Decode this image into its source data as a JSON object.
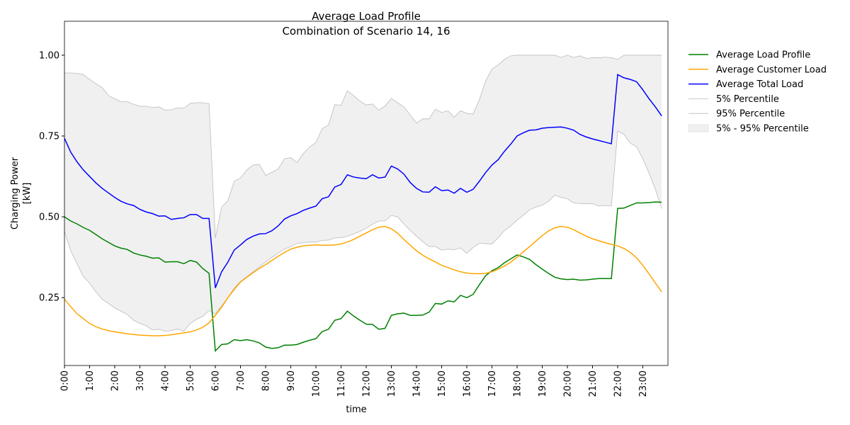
{
  "chart_data": {
    "type": "line",
    "title": "Average Load Profile",
    "subtitle": "Combination of Scenario 14, 16",
    "xlabel": "time",
    "ylabel": [
      "Charging Power",
      "[kW]"
    ],
    "xlim": [
      0,
      24
    ],
    "ylim": [
      0.04,
      1.105
    ],
    "xticks": [
      {
        "value": 0,
        "label": "0:00"
      },
      {
        "value": 1,
        "label": "1:00"
      },
      {
        "value": 2,
        "label": "2:00"
      },
      {
        "value": 3,
        "label": "3:00"
      },
      {
        "value": 4,
        "label": "4:00"
      },
      {
        "value": 5,
        "label": "5:00"
      },
      {
        "value": 6,
        "label": "6:00"
      },
      {
        "value": 7,
        "label": "7:00"
      },
      {
        "value": 8,
        "label": "8:00"
      },
      {
        "value": 9,
        "label": "9:00"
      },
      {
        "value": 10,
        "label": "10:00"
      },
      {
        "value": 11,
        "label": "11:00"
      },
      {
        "value": 12,
        "label": "12:00"
      },
      {
        "value": 13,
        "label": "13:00"
      },
      {
        "value": 14,
        "label": "14:00"
      },
      {
        "value": 15,
        "label": "15:00"
      },
      {
        "value": 16,
        "label": "16:00"
      },
      {
        "value": 17,
        "label": "17:00"
      },
      {
        "value": 18,
        "label": "18:00"
      },
      {
        "value": 19,
        "label": "19:00"
      },
      {
        "value": 20,
        "label": "20:00"
      },
      {
        "value": 21,
        "label": "21:00"
      },
      {
        "value": 22,
        "label": "22:00"
      },
      {
        "value": 23,
        "label": "23:00"
      }
    ],
    "yticks": [
      0.25,
      {
        "value": 0.5,
        "label": "0.50"
      },
      {
        "value": 0.75,
        "label": "0.75"
      },
      {
        "value": 1.0,
        "label": "1.00"
      }
    ],
    "legend": "outside-upper-right",
    "x": [
      0,
      0.25,
      0.5,
      0.75,
      1,
      1.25,
      1.5,
      1.75,
      2,
      2.25,
      2.5,
      2.75,
      3,
      3.25,
      3.5,
      3.75,
      4,
      4.25,
      4.5,
      4.75,
      5,
      5.25,
      5.5,
      5.75,
      6,
      6.25,
      6.5,
      6.75,
      7,
      7.25,
      7.5,
      7.75,
      8,
      8.25,
      8.5,
      8.75,
      9,
      9.25,
      9.5,
      9.75,
      10,
      10.25,
      10.5,
      10.75,
      11,
      11.25,
      11.5,
      11.75,
      12,
      12.25,
      12.5,
      12.75,
      13,
      13.25,
      13.5,
      13.75,
      14,
      14.25,
      14.5,
      14.75,
      15,
      15.25,
      15.5,
      15.75,
      16,
      16.25,
      16.5,
      16.75,
      17,
      17.25,
      17.5,
      17.75,
      18,
      18.25,
      18.5,
      18.75,
      19,
      19.25,
      19.5,
      19.75,
      20,
      20.25,
      20.5,
      20.75,
      21,
      21.25,
      21.5,
      21.75,
      22,
      22.25,
      22.5,
      22.75,
      23,
      23.25,
      23.5,
      23.75
    ],
    "series": [
      {
        "name": "Average Load Profile",
        "color": "#008000",
        "width": 1.5,
        "values": [
          0.5,
          0.487,
          0.478,
          0.467,
          0.458,
          0.445,
          0.432,
          0.421,
          0.41,
          0.403,
          0.399,
          0.388,
          0.382,
          0.378,
          0.372,
          0.373,
          0.36,
          0.361,
          0.361,
          0.355,
          0.365,
          0.36,
          0.34,
          0.325,
          0.085,
          0.105,
          0.107,
          0.12,
          0.117,
          0.12,
          0.116,
          0.11,
          0.097,
          0.093,
          0.095,
          0.103,
          0.103,
          0.105,
          0.112,
          0.118,
          0.123,
          0.145,
          0.152,
          0.18,
          0.185,
          0.208,
          0.193,
          0.18,
          0.168,
          0.167,
          0.152,
          0.155,
          0.195,
          0.2,
          0.202,
          0.195,
          0.195,
          0.196,
          0.205,
          0.232,
          0.23,
          0.24,
          0.237,
          0.257,
          0.25,
          0.26,
          0.29,
          0.318,
          0.333,
          0.343,
          0.358,
          0.37,
          0.382,
          0.376,
          0.368,
          0.352,
          0.338,
          0.325,
          0.313,
          0.308,
          0.306,
          0.307,
          0.304,
          0.305,
          0.307,
          0.309,
          0.309,
          0.309,
          0.526,
          0.527,
          0.535,
          0.543,
          0.543,
          0.544,
          0.546,
          0.545
        ]
      },
      {
        "name": "Average Customer Load",
        "color": "#ffa500",
        "width": 1.5,
        "values": [
          0.245,
          0.222,
          0.2,
          0.185,
          0.17,
          0.16,
          0.153,
          0.148,
          0.144,
          0.141,
          0.138,
          0.136,
          0.134,
          0.133,
          0.132,
          0.132,
          0.133,
          0.135,
          0.138,
          0.141,
          0.144,
          0.15,
          0.158,
          0.172,
          0.195,
          0.22,
          0.25,
          0.275,
          0.298,
          0.313,
          0.327,
          0.34,
          0.352,
          0.365,
          0.378,
          0.39,
          0.4,
          0.406,
          0.41,
          0.412,
          0.413,
          0.412,
          0.412,
          0.413,
          0.416,
          0.422,
          0.43,
          0.44,
          0.45,
          0.46,
          0.468,
          0.47,
          0.463,
          0.449,
          0.43,
          0.412,
          0.395,
          0.381,
          0.37,
          0.36,
          0.35,
          0.343,
          0.336,
          0.33,
          0.326,
          0.324,
          0.324,
          0.325,
          0.33,
          0.338,
          0.348,
          0.36,
          0.375,
          0.392,
          0.408,
          0.425,
          0.442,
          0.456,
          0.466,
          0.47,
          0.468,
          0.46,
          0.45,
          0.44,
          0.432,
          0.426,
          0.42,
          0.415,
          0.41,
          0.402,
          0.39,
          0.373,
          0.35,
          0.323,
          0.295,
          0.268
        ]
      },
      {
        "name": "Average Total Load",
        "color": "#0000ff",
        "width": 1.5,
        "values": [
          0.743,
          0.7,
          0.67,
          0.645,
          0.625,
          0.605,
          0.588,
          0.574,
          0.56,
          0.548,
          0.54,
          0.535,
          0.523,
          0.515,
          0.51,
          0.502,
          0.503,
          0.492,
          0.495,
          0.497,
          0.507,
          0.507,
          0.495,
          0.495,
          0.28,
          0.33,
          0.36,
          0.397,
          0.413,
          0.43,
          0.44,
          0.447,
          0.448,
          0.457,
          0.472,
          0.493,
          0.503,
          0.51,
          0.52,
          0.527,
          0.533,
          0.556,
          0.562,
          0.592,
          0.6,
          0.63,
          0.623,
          0.62,
          0.618,
          0.63,
          0.62,
          0.623,
          0.657,
          0.648,
          0.632,
          0.606,
          0.588,
          0.577,
          0.576,
          0.593,
          0.581,
          0.583,
          0.573,
          0.588,
          0.576,
          0.585,
          0.61,
          0.637,
          0.66,
          0.677,
          0.703,
          0.725,
          0.75,
          0.76,
          0.768,
          0.769,
          0.774,
          0.776,
          0.777,
          0.778,
          0.774,
          0.768,
          0.755,
          0.747,
          0.741,
          0.736,
          0.731,
          0.726,
          0.94,
          0.93,
          0.925,
          0.918,
          0.893,
          0.865,
          0.84,
          0.812
        ]
      },
      {
        "name": "5% Percentile",
        "color": "#bbbbbb",
        "width": 0.8,
        "values": [
          0.455,
          0.395,
          0.355,
          0.315,
          0.295,
          0.268,
          0.245,
          0.232,
          0.218,
          0.208,
          0.198,
          0.18,
          0.17,
          0.163,
          0.15,
          0.152,
          0.146,
          0.148,
          0.153,
          0.146,
          0.17,
          0.183,
          0.192,
          0.21,
          0.2,
          0.225,
          0.25,
          0.28,
          0.3,
          0.315,
          0.33,
          0.345,
          0.36,
          0.375,
          0.388,
          0.4,
          0.408,
          0.418,
          0.42,
          0.422,
          0.422,
          0.427,
          0.428,
          0.435,
          0.435,
          0.44,
          0.447,
          0.455,
          0.465,
          0.477,
          0.487,
          0.487,
          0.504,
          0.5,
          0.478,
          0.458,
          0.44,
          0.423,
          0.408,
          0.408,
          0.397,
          0.4,
          0.398,
          0.404,
          0.387,
          0.405,
          0.418,
          0.417,
          0.416,
          0.435,
          0.458,
          0.472,
          0.49,
          0.505,
          0.522,
          0.53,
          0.536,
          0.548,
          0.567,
          0.56,
          0.556,
          0.543,
          0.541,
          0.54,
          0.541,
          0.533,
          0.535,
          0.534,
          0.765,
          0.755,
          0.728,
          0.717,
          0.68,
          0.635,
          0.585,
          0.525
        ]
      },
      {
        "name": "95% Percentile",
        "color": "#bbbbbb",
        "width": 0.8,
        "values": [
          0.945,
          0.945,
          0.944,
          0.94,
          0.925,
          0.912,
          0.9,
          0.875,
          0.865,
          0.856,
          0.856,
          0.848,
          0.842,
          0.842,
          0.838,
          0.84,
          0.83,
          0.831,
          0.837,
          0.836,
          0.851,
          0.853,
          0.853,
          0.85,
          0.435,
          0.53,
          0.55,
          0.61,
          0.62,
          0.645,
          0.66,
          0.662,
          0.628,
          0.638,
          0.648,
          0.68,
          0.683,
          0.668,
          0.696,
          0.716,
          0.73,
          0.773,
          0.784,
          0.847,
          0.845,
          0.89,
          0.875,
          0.858,
          0.846,
          0.849,
          0.83,
          0.843,
          0.866,
          0.853,
          0.84,
          0.815,
          0.79,
          0.803,
          0.803,
          0.833,
          0.823,
          0.828,
          0.808,
          0.828,
          0.82,
          0.818,
          0.862,
          0.92,
          0.957,
          0.97,
          0.987,
          0.998,
          1.0,
          1.0,
          1.0,
          1.0,
          1.0,
          1.0,
          1.0,
          0.993,
          1.0,
          0.993,
          0.998,
          0.99,
          0.992,
          0.992,
          0.994,
          0.992,
          0.987,
          1.0,
          1.0,
          1.0,
          1.0,
          1.0,
          1.0,
          1.0
        ]
      }
    ],
    "band": {
      "name": "5% - 95% Percentile",
      "color": "#f0f0f0",
      "lower": "5% Percentile",
      "upper": "95% Percentile"
    }
  }
}
